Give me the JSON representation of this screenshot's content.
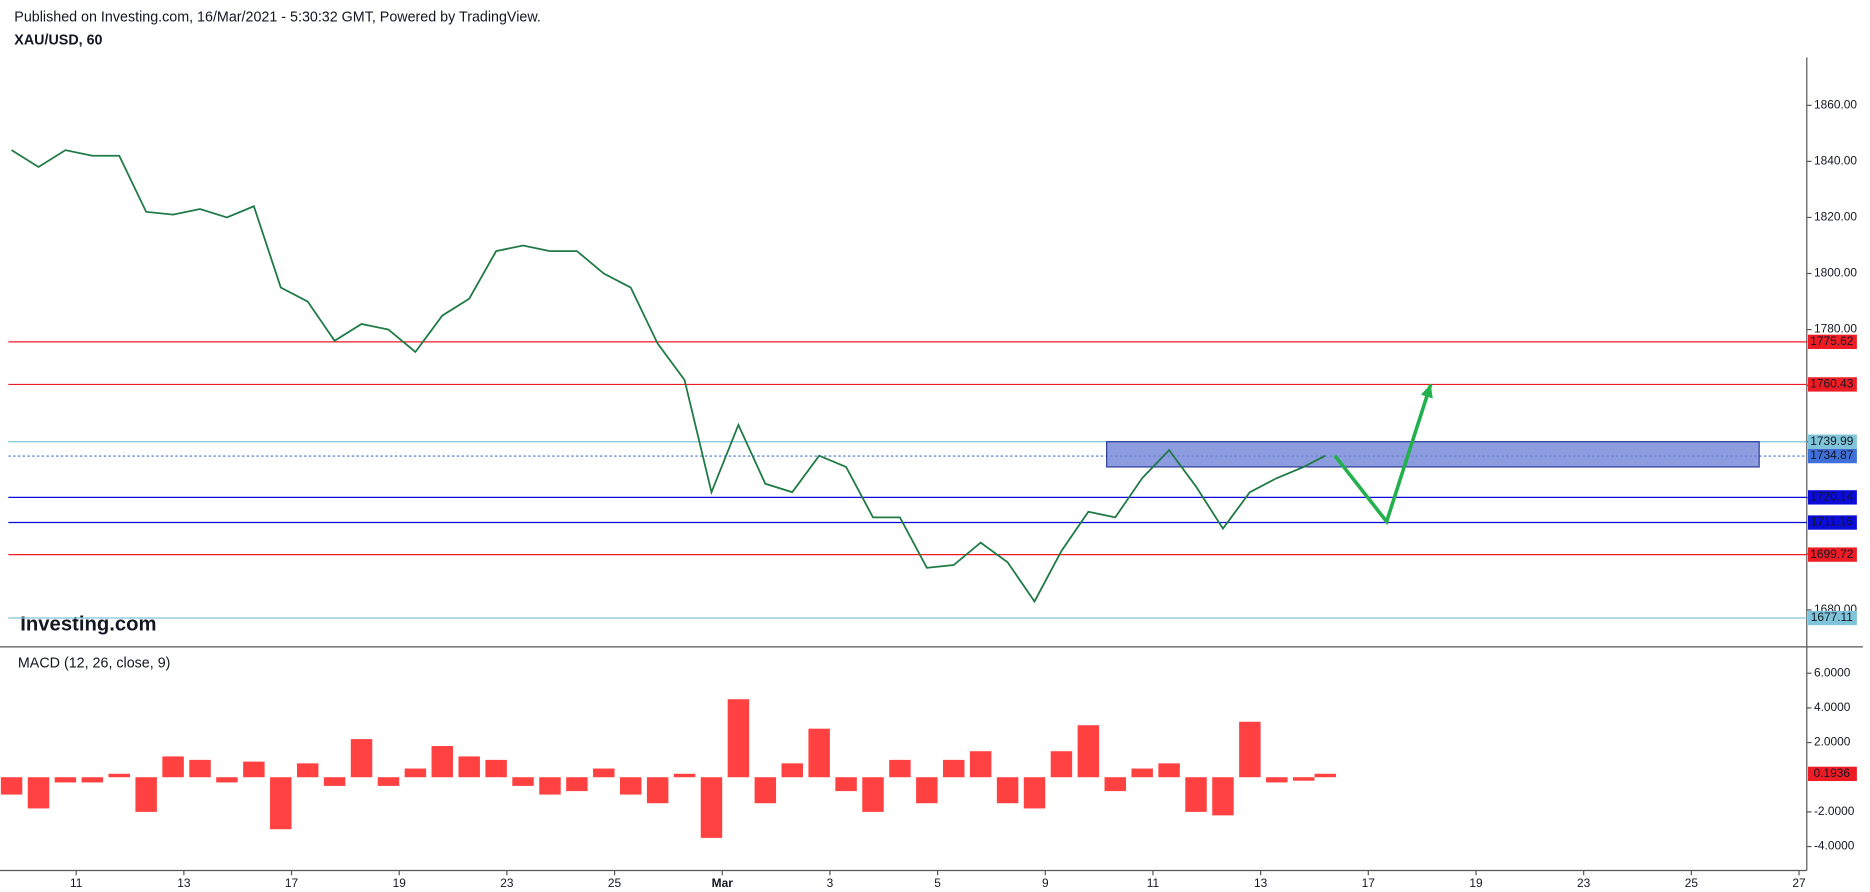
{
  "header": {
    "published": "Published on Investing.com, 16/Mar/2021 - 5:30:32 GMT, Powered by TradingView.",
    "watermark": "Investing.com"
  },
  "chart_data": [
    {
      "type": "line",
      "title": "XAU/USD, 60",
      "color": "#1f7a45",
      "x": [
        -0.6,
        -0.35,
        -0.1,
        0.15,
        0.4,
        0.65,
        0.9,
        1.15,
        1.4,
        1.65,
        1.9,
        2.15,
        2.4,
        2.65,
        2.9,
        3.15,
        3.4,
        3.65,
        3.9,
        4.15,
        4.4,
        4.65,
        4.9,
        5.15,
        5.4,
        5.65,
        5.9,
        6.15,
        6.4,
        6.65,
        6.9,
        7.15,
        7.4,
        7.65,
        7.9,
        8.15,
        8.4,
        8.65,
        8.9,
        9.15,
        9.4,
        9.65,
        9.9,
        10.15,
        10.4,
        10.65,
        10.9,
        11.15,
        11.4,
        11.6
      ],
      "values": [
        1844,
        1838,
        1844,
        1842,
        1842,
        1822,
        1821,
        1823,
        1820,
        1824,
        1795,
        1790,
        1776,
        1782,
        1780,
        1772,
        1785,
        1791,
        1808,
        1810,
        1808,
        1808,
        1800,
        1795,
        1775,
        1762,
        1722,
        1746,
        1725,
        1722,
        1735,
        1731,
        1713,
        1713,
        1695,
        1696,
        1704,
        1697,
        1683,
        1701,
        1715,
        1713,
        1727,
        1737,
        1724,
        1709,
        1722,
        1727,
        1731,
        1735
      ],
      "xlim": [
        -0.63,
        16.05
      ],
      "xticks": [
        {
          "value": 0,
          "label": "11"
        },
        {
          "value": 1,
          "label": "13"
        },
        {
          "value": 2,
          "label": "17"
        },
        {
          "value": 3,
          "label": "19"
        },
        {
          "value": 4,
          "label": "23"
        },
        {
          "value": 5,
          "label": "25"
        },
        {
          "value": 6,
          "label": "Mar"
        },
        {
          "value": 7,
          "label": "3"
        },
        {
          "value": 8,
          "label": "5"
        },
        {
          "value": 9,
          "label": "9"
        },
        {
          "value": 10,
          "label": "11"
        },
        {
          "value": 11,
          "label": "13"
        },
        {
          "value": 12,
          "label": "17"
        },
        {
          "value": 13,
          "label": "19"
        },
        {
          "value": 14,
          "label": "23"
        },
        {
          "value": 15,
          "label": "25"
        },
        {
          "value": 16,
          "label": "27"
        }
      ],
      "ylim": [
        1666.8,
        1877.1
      ],
      "yticks": [
        {
          "value": 1680,
          "label": "1680.00"
        },
        {
          "value": 1700,
          "label": "1700.00"
        },
        {
          "value": 1720,
          "label": "1720.00"
        },
        {
          "value": 1740,
          "label": "1740.00"
        },
        {
          "value": 1760,
          "label": "1760.00"
        },
        {
          "value": 1780,
          "label": "1780.00"
        },
        {
          "value": 1800,
          "label": "1800.00"
        },
        {
          "value": 1820,
          "label": "1820.00"
        },
        {
          "value": 1840,
          "label": "1840.00"
        },
        {
          "value": 1860,
          "label": "1860.00"
        }
      ],
      "levels": [
        {
          "value": 1775.62,
          "color": "#ee1c25"
        },
        {
          "value": 1760.43,
          "color": "#ee1c25"
        },
        {
          "value": 1739.99,
          "color": "#7fc4d8"
        },
        {
          "value": 1734.87,
          "color": "#3f6fd8",
          "dotted": true
        },
        {
          "value": 1720.14,
          "color": "#0c0cd8"
        },
        {
          "value": 1711.16,
          "color": "#0c0cd8"
        },
        {
          "value": 1699.72,
          "color": "#ee1c25"
        },
        {
          "value": 1677.11,
          "color": "#7fc4d8"
        }
      ],
      "zone": {
        "x": [
          9.57,
          15.63
        ],
        "y": [
          1731,
          1740
        ],
        "color": "#7083d6"
      },
      "arrow": {
        "x": [
          11.69,
          12.17,
          12.58
        ],
        "y": [
          1735,
          1711.5,
          1760.5
        ],
        "color": "#22b14c"
      }
    },
    {
      "type": "bar",
      "title": "MACD (12, 26, close, 9)",
      "color": "#ff2020",
      "x": [
        -0.6,
        -0.35,
        -0.1,
        0.15,
        0.4,
        0.65,
        0.9,
        1.15,
        1.4,
        1.65,
        1.9,
        2.15,
        2.4,
        2.65,
        2.9,
        3.15,
        3.4,
        3.65,
        3.9,
        4.15,
        4.4,
        4.65,
        4.9,
        5.15,
        5.4,
        5.65,
        5.9,
        6.15,
        6.4,
        6.65,
        6.9,
        7.15,
        7.4,
        7.65,
        7.9,
        8.15,
        8.4,
        8.65,
        8.9,
        9.15,
        9.4,
        9.65,
        9.9,
        10.15,
        10.4,
        10.65,
        10.9,
        11.15,
        11.4,
        11.6
      ],
      "values": [
        -1.0,
        -1.8,
        -0.3,
        -0.3,
        0.2,
        -2.0,
        1.2,
        1.0,
        -0.3,
        0.9,
        -3.0,
        0.8,
        -0.5,
        2.2,
        -0.5,
        0.5,
        1.8,
        1.2,
        1.0,
        -0.5,
        -1.0,
        -0.8,
        0.5,
        -1.0,
        -1.5,
        0.2,
        -3.5,
        4.5,
        -1.5,
        0.8,
        2.8,
        -0.8,
        -2.0,
        1.0,
        -1.5,
        1.0,
        1.5,
        -1.5,
        -1.8,
        1.5,
        3.0,
        -0.8,
        0.5,
        0.8,
        -2.0,
        -2.2,
        3.2,
        -0.3,
        -0.2,
        0.2
      ],
      "last_value": 0.1936,
      "ylim": [
        -5.38,
        7.52
      ],
      "yticks": [
        {
          "value": -4,
          "label": "-4.0000"
        },
        {
          "value": -2,
          "label": "-2.0000"
        },
        {
          "value": 2,
          "label": "2.0000"
        },
        {
          "value": 4,
          "label": "4.0000"
        },
        {
          "value": 6,
          "label": "6.0000"
        }
      ]
    }
  ]
}
